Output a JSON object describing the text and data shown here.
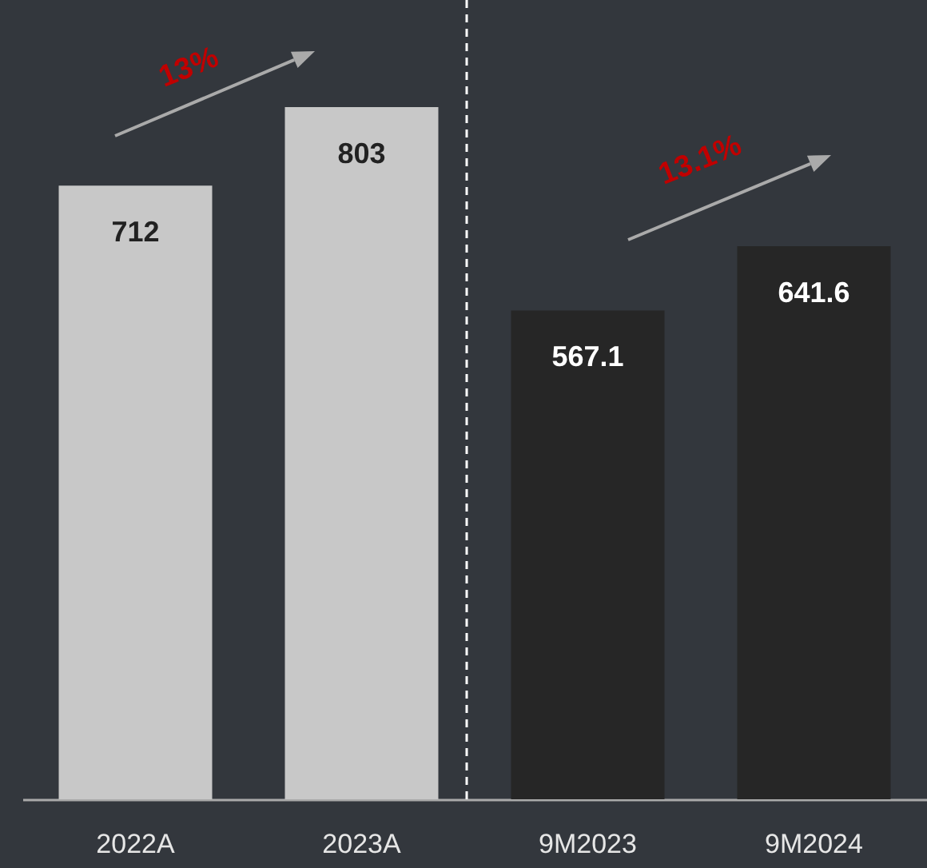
{
  "chart_data": {
    "type": "bar",
    "categories": [
      "2022A",
      "2023A",
      "9M2023",
      "9M2024"
    ],
    "values": [
      712,
      803,
      567.1,
      641.6
    ],
    "colors": [
      "#c8c8c8",
      "#c8c8c8",
      "#262626",
      "#262626"
    ],
    "data_labels": true,
    "annotations": [
      "13%",
      "13.1%"
    ]
  }
}
